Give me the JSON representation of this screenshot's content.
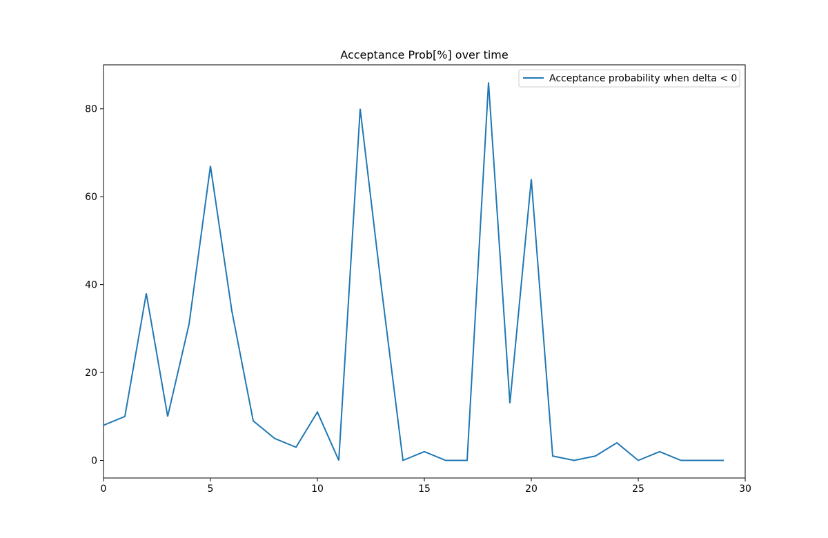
{
  "chart_data": {
    "type": "line",
    "title": "Acceptance Prob[%] over time",
    "xlabel": "",
    "ylabel": "",
    "xlim": [
      0,
      30
    ],
    "ylim": [
      -4,
      90
    ],
    "xticks": [
      0,
      5,
      10,
      15,
      20,
      25,
      30
    ],
    "yticks": [
      0,
      20,
      40,
      60,
      80
    ],
    "grid": false,
    "legend_position": "top-right",
    "series": [
      {
        "name": "Acceptance probability when delta < 0",
        "color": "#1f77b4",
        "x": [
          0,
          1,
          2,
          3,
          4,
          5,
          6,
          7,
          8,
          9,
          10,
          11,
          12,
          13,
          14,
          15,
          16,
          17,
          18,
          19,
          20,
          21,
          22,
          23,
          24,
          25,
          26,
          27,
          28,
          29
        ],
        "y": [
          8,
          10,
          38,
          10,
          31,
          67,
          34,
          9,
          5,
          3,
          11,
          0,
          80,
          39,
          0,
          2,
          0,
          0,
          86,
          13,
          64,
          1,
          0,
          1,
          4,
          0,
          2,
          0,
          0,
          0
        ]
      }
    ]
  }
}
